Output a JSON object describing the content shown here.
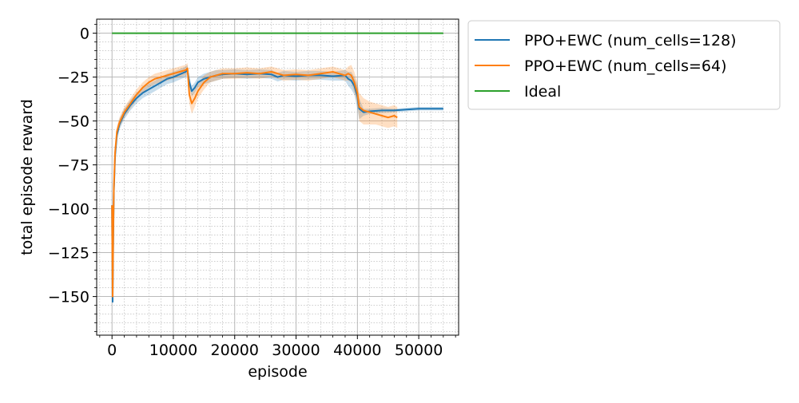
{
  "chart_data": {
    "type": "line",
    "xlabel": "episode",
    "ylabel": "total episode reward",
    "xlim": [
      -2500,
      56500
    ],
    "ylim": [
      -172,
      8
    ],
    "x_ticks": [
      0,
      10000,
      20000,
      30000,
      40000,
      50000
    ],
    "x_tick_labels": [
      "0",
      "10000",
      "20000",
      "30000",
      "40000",
      "50000"
    ],
    "y_ticks": [
      0,
      -25,
      -50,
      -75,
      -100,
      -125,
      -150
    ],
    "y_tick_labels": [
      "0",
      "−25",
      "−50",
      "−75",
      "−100",
      "−125",
      "−150"
    ],
    "grid": true,
    "minor_grid": true,
    "legend_position": "outside-top-right",
    "series": [
      {
        "name": "PPO+EWC (num_cells=128)",
        "color": "#1f77b4",
        "band_color": "#1f77b4",
        "x": [
          0,
          100,
          200,
          300,
          500,
          800,
          1200,
          2000,
          3000,
          4000,
          5000,
          6000,
          7000,
          8000,
          9000,
          10000,
          11000,
          12000,
          12300,
          12600,
          13000,
          13500,
          14000,
          15000,
          16000,
          17000,
          18000,
          20000,
          22000,
          24000,
          26000,
          27000,
          28000,
          30000,
          32000,
          34000,
          36000,
          38000,
          38500,
          39000,
          39500,
          40000,
          40300,
          41000,
          42000,
          44000,
          46000,
          48000,
          50000,
          52000,
          54000
        ],
        "y": [
          -98,
          -153,
          -118,
          -90,
          -70,
          -58,
          -52,
          -46,
          -41,
          -37,
          -34,
          -32,
          -30,
          -28,
          -26,
          -25,
          -23.5,
          -22,
          -21,
          -28,
          -33,
          -31,
          -28,
          -26,
          -25,
          -24,
          -23.5,
          -23,
          -23.5,
          -23,
          -23.5,
          -25,
          -24,
          -24.5,
          -24,
          -24,
          -24.5,
          -24,
          -26,
          -27,
          -30,
          -36,
          -43,
          -45,
          -44.5,
          -44,
          -44,
          -43.5,
          -43,
          -43,
          -43
        ],
        "band_lower": [
          -98,
          -153,
          -118,
          -92,
          -73,
          -61,
          -55,
          -49,
          -44,
          -40,
          -37,
          -35,
          -33,
          -31,
          -29,
          -28,
          -26.5,
          -25,
          -24,
          -31,
          -36,
          -34,
          -31,
          -29,
          -28,
          -27,
          -26,
          -25.5,
          -26,
          -25.5,
          -26,
          -27.5,
          -26.5,
          -27,
          -26.5,
          -26.5,
          -27,
          -27,
          -30,
          -32,
          -35,
          -43,
          -49,
          -47,
          -46,
          -45.5,
          -45,
          -44.5,
          -44,
          -44,
          -44
        ],
        "band_upper": [
          -98,
          -153,
          -118,
          -88,
          -67,
          -55,
          -49,
          -43,
          -38,
          -34,
          -31,
          -29,
          -27,
          -25,
          -23,
          -22,
          -20.5,
          -19,
          -18,
          -25,
          -30,
          -28,
          -25,
          -23,
          -22,
          -21,
          -21,
          -20.5,
          -21,
          -20.5,
          -21,
          -22.5,
          -21.5,
          -22,
          -21.5,
          -21.5,
          -22,
          -21,
          -22,
          -22,
          -25,
          -29,
          -37,
          -43,
          -43,
          -42.5,
          -43,
          -42.5,
          -42,
          -42,
          -42
        ]
      },
      {
        "name": "PPO+EWC (num_cells=64)",
        "color": "#ff7f0e",
        "band_color": "#ff7f0e",
        "x": [
          0,
          100,
          200,
          300,
          500,
          800,
          1200,
          2000,
          3000,
          4000,
          5000,
          6000,
          7000,
          8000,
          9000,
          10000,
          11000,
          12000,
          12300,
          12600,
          13000,
          13500,
          14000,
          15000,
          16000,
          17000,
          18000,
          20000,
          22000,
          24000,
          26000,
          27000,
          28000,
          30000,
          32000,
          34000,
          36000,
          38000,
          38500,
          39000,
          39500,
          40000,
          40300,
          41000,
          42000,
          43000,
          44000,
          45000,
          46000,
          46500
        ],
        "y": [
          -98,
          -150,
          -115,
          -88,
          -68,
          -56,
          -51,
          -45,
          -40,
          -35,
          -31,
          -28,
          -26,
          -25,
          -24,
          -23,
          -22,
          -21,
          -20,
          -35,
          -40,
          -37,
          -33,
          -28,
          -25,
          -24,
          -23,
          -23,
          -22.5,
          -23,
          -22,
          -23,
          -24,
          -23.5,
          -24,
          -23,
          -22,
          -24,
          -23,
          -24,
          -28,
          -34,
          -42,
          -44,
          -45,
          -46,
          -47,
          -48,
          -47,
          -48
        ],
        "band_lower": [
          -98,
          -150,
          -115,
          -91,
          -71,
          -59,
          -54,
          -48,
          -43,
          -38,
          -34,
          -31,
          -29,
          -28,
          -27,
          -26,
          -25,
          -24,
          -23,
          -40,
          -46,
          -42,
          -37,
          -32,
          -28,
          -27,
          -26,
          -26,
          -25.5,
          -26,
          -25,
          -26,
          -27,
          -26.5,
          -27,
          -26,
          -25,
          -27,
          -27,
          -28,
          -34,
          -40,
          -50,
          -52,
          -52,
          -52,
          -53,
          -54,
          -53,
          -54
        ],
        "band_upper": [
          -98,
          -150,
          -115,
          -85,
          -65,
          -53,
          -48,
          -42,
          -37,
          -32,
          -28,
          -25,
          -23,
          -22,
          -21,
          -20,
          -19,
          -18,
          -17,
          -30,
          -34,
          -32,
          -29,
          -24,
          -22,
          -21,
          -20,
          -20,
          -19.5,
          -20,
          -19,
          -20,
          -21,
          -20.5,
          -21,
          -20,
          -19,
          -21,
          -19,
          -18,
          -22,
          -28,
          -34,
          -37,
          -39,
          -40,
          -41,
          -42,
          -41,
          -42
        ]
      },
      {
        "name": "Ideal",
        "color": "#2ca02c",
        "x": [
          0,
          54000
        ],
        "y": [
          0,
          0
        ]
      }
    ]
  }
}
